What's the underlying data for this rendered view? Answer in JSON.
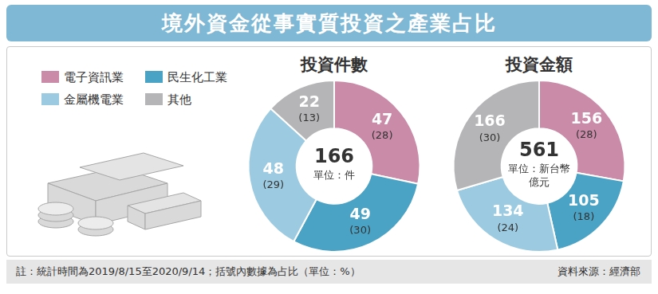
{
  "title": "境外資金從事實質投資之產業占比",
  "note": "註：統計時間為2019/8/15至2020/9/14；括號內數據為占比（單位：%）",
  "source": "資料來源：經濟部",
  "chart_data": [
    {
      "type": "doughnut",
      "title": "投資件數",
      "categories": [
        "電子資訊業",
        "民生化工業",
        "金屬機電業",
        "其他"
      ],
      "values": [
        47,
        49,
        48,
        22
      ],
      "colors": [
        "#c98ba8",
        "#4aa3c4",
        "#9ccbe1",
        "#b5b5b7"
      ],
      "shares": [
        {
          "value": 28,
          "label": "(28)"
        },
        {
          "value": 30,
          "label": "(30)"
        },
        {
          "value": 29,
          "label": "(29)"
        },
        {
          "value": 13,
          "label": "(13)"
        }
      ],
      "data_labels": true,
      "total": 166,
      "total_label": [
        "單位：件"
      ]
    },
    {
      "type": "doughnut",
      "title": "投資金額",
      "categories": [
        "電子資訊業",
        "民生化工業",
        "金屬機電業",
        "其他"
      ],
      "values": [
        156,
        105,
        134,
        166
      ],
      "colors": [
        "#c98ba8",
        "#4aa3c4",
        "#9ccbe1",
        "#b5b5b7"
      ],
      "shares": [
        {
          "value": 28,
          "label": "(28)"
        },
        {
          "value": 18,
          "label": "(18)"
        },
        {
          "value": 24,
          "label": "(24)"
        },
        {
          "value": 30,
          "label": "(30)"
        }
      ],
      "data_labels": true,
      "total": 561,
      "total_label": [
        "單位：新台幣",
        "億元"
      ]
    }
  ]
}
